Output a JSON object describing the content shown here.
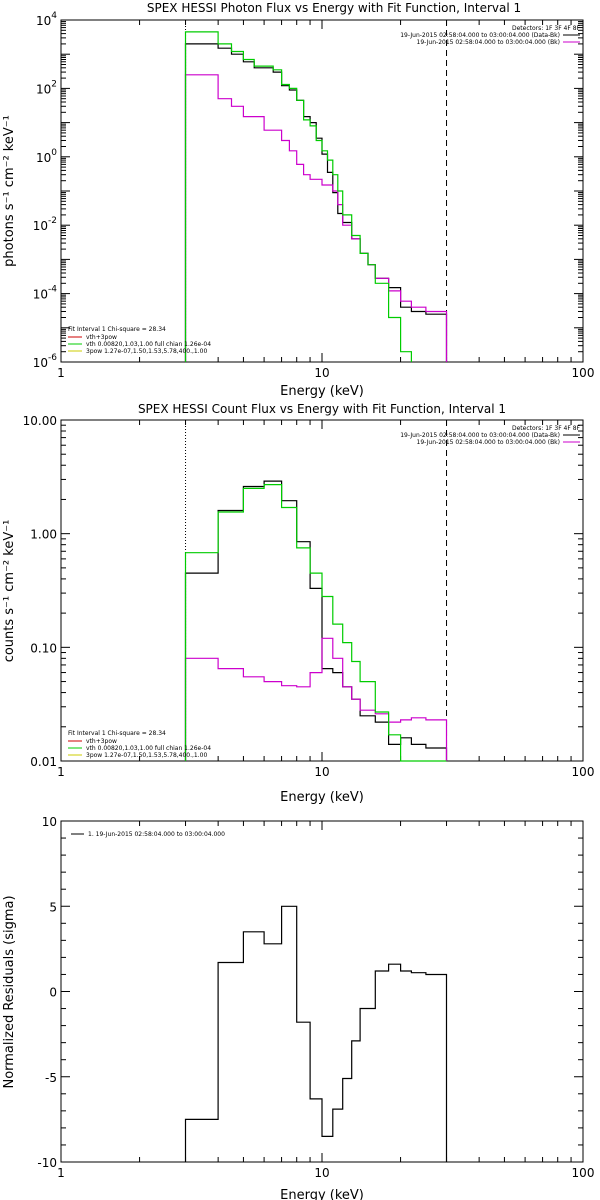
{
  "chart_data": [
    {
      "type": "line",
      "title": "SPEX HESSI Photon Flux vs Energy with Fit Function, Interval 1",
      "xlabel": "Energy (keV)",
      "ylabel": "photons s⁻¹ cm⁻² keV⁻¹",
      "xscale": "log",
      "yscale": "log",
      "xlim": [
        1,
        100
      ],
      "ylim": [
        1e-06,
        10000
      ],
      "xticks": [
        1,
        10,
        100
      ],
      "xtick_labels": [
        "1",
        "10",
        "100"
      ],
      "yticks": [
        1e-06,
        0.0001,
        0.01,
        1,
        100,
        10000
      ],
      "ytick_labels": [
        [
          "10",
          "-6"
        ],
        [
          "10",
          "-4"
        ],
        [
          "10",
          "-2"
        ],
        [
          "10",
          "0"
        ],
        [
          "10",
          "2"
        ],
        [
          "10",
          "4"
        ]
      ],
      "vlines": [
        {
          "x": 3,
          "style": "dotted"
        },
        {
          "x": 30,
          "style": "dashed"
        }
      ],
      "legend_top": {
        "header": "Detectors: 1F 3F 4F 8F",
        "entries": [
          {
            "label": "19-Jun-2015 02:58:04.000 to 03:00:04.000 (Data-Bk)",
            "color": "#000000"
          },
          {
            "label": "19-Jun-2015 02:58:04.000 to 03:00:04.000 (Bk)",
            "color": "#cc00cc"
          }
        ]
      },
      "legend_bottom": {
        "header": "Fit Interval 1   Chi-square = 28.34",
        "entries": [
          {
            "label": "vth+3pow",
            "color": "#cc0000"
          },
          {
            "label": "vth 0.00820,1.03,1.00  full chian 1.26e-04",
            "color": "#00cc00"
          },
          {
            "label": "3pow 1.27e-07,1.50,1.53,5.78,400.,1.00",
            "color": "#cccc00"
          }
        ]
      },
      "series": [
        {
          "color": "#000000",
          "step": true,
          "bins": [
            [
              3.0,
              3.5,
              2000
            ],
            [
              3.5,
              4.0,
              2000
            ],
            [
              4.0,
              4.5,
              1500
            ],
            [
              4.5,
              5.0,
              1000
            ],
            [
              5.0,
              5.5,
              600
            ],
            [
              5.5,
              6.0,
              400
            ],
            [
              6.0,
              6.5,
              400
            ],
            [
              6.5,
              7.0,
              300
            ],
            [
              7.0,
              7.5,
              120
            ],
            [
              7.5,
              8.0,
              90
            ],
            [
              8.0,
              8.5,
              45
            ],
            [
              8.5,
              9.0,
              15
            ],
            [
              9.0,
              9.5,
              10
            ],
            [
              9.5,
              10.0,
              3.5
            ],
            [
              10.0,
              10.5,
              1.2
            ],
            [
              10.5,
              11.0,
              0.35
            ],
            [
              11.0,
              11.5,
              0.09
            ],
            [
              11.5,
              12.0,
              0.022
            ],
            [
              12.0,
              13.0,
              0.012
            ],
            [
              13.0,
              14.0,
              0.004
            ],
            [
              14.0,
              15.0,
              0.0015
            ],
            [
              15.0,
              16.0,
              0.0007
            ],
            [
              16.0,
              18.0,
              0.00028
            ],
            [
              18.0,
              20.0,
              0.00015
            ],
            [
              20.0,
              22.0,
              4e-05
            ],
            [
              22.0,
              25.0,
              3e-05
            ],
            [
              25.0,
              30.0,
              2.5e-05
            ]
          ]
        },
        {
          "color": "#cc00cc",
          "step": true,
          "bins": [
            [
              3.0,
              3.5,
              250
            ],
            [
              3.5,
              4.0,
              250
            ],
            [
              4.0,
              4.5,
              50
            ],
            [
              4.5,
              5.0,
              30
            ],
            [
              5.0,
              6.0,
              15
            ],
            [
              6.0,
              7.0,
              6
            ],
            [
              7.0,
              7.5,
              3
            ],
            [
              7.5,
              8.0,
              1.5
            ],
            [
              8.0,
              8.5,
              0.6
            ],
            [
              8.5,
              9.0,
              0.3
            ],
            [
              9.0,
              10.0,
              0.22
            ],
            [
              10.0,
              11.0,
              0.15
            ],
            [
              11.0,
              11.5,
              0.1
            ],
            [
              11.5,
              12.0,
              0.04
            ],
            [
              12.0,
              13.0,
              0.01
            ],
            [
              13.0,
              14.0,
              0.004
            ],
            [
              14.0,
              15.0,
              0.0015
            ],
            [
              15.0,
              16.0,
              0.0007
            ],
            [
              16.0,
              18.0,
              0.00028
            ],
            [
              18.0,
              20.0,
              0.00012
            ],
            [
              20.0,
              22.0,
              6e-05
            ],
            [
              22.0,
              25.0,
              4e-05
            ],
            [
              25.0,
              30.0,
              3e-05
            ]
          ]
        },
        {
          "color": "#00cc00",
          "step": true,
          "bins": [
            [
              3.0,
              3.5,
              4500
            ],
            [
              3.5,
              4.0,
              4500
            ],
            [
              4.0,
              4.5,
              2000
            ],
            [
              4.5,
              5.0,
              1200
            ],
            [
              5.0,
              5.5,
              700
            ],
            [
              5.5,
              6.0,
              450
            ],
            [
              6.0,
              6.5,
              450
            ],
            [
              6.5,
              7.0,
              350
            ],
            [
              7.0,
              7.5,
              130
            ],
            [
              7.5,
              8.0,
              100
            ],
            [
              8.0,
              8.5,
              45
            ],
            [
              8.5,
              9.0,
              12
            ],
            [
              9.0,
              9.5,
              8
            ],
            [
              9.5,
              10.0,
              3
            ],
            [
              10.0,
              10.5,
              1.5
            ],
            [
              10.5,
              11.0,
              0.8
            ],
            [
              11.0,
              11.5,
              0.3
            ],
            [
              11.5,
              12.0,
              0.1
            ],
            [
              12.0,
              13.0,
              0.02
            ],
            [
              13.0,
              14.0,
              0.005
            ],
            [
              14.0,
              15.0,
              0.0015
            ],
            [
              15.0,
              16.0,
              0.0007
            ],
            [
              16.0,
              18.0,
              0.0002
            ],
            [
              18.0,
              20.0,
              2e-05
            ],
            [
              20.0,
              22.0,
              2e-06
            ]
          ]
        }
      ]
    },
    {
      "type": "line",
      "title": "SPEX HESSI Count Flux vs Energy with Fit Function, Interval 1",
      "xlabel": "Energy (keV)",
      "ylabel": "counts s⁻¹ cm⁻² keV⁻¹",
      "xscale": "log",
      "yscale": "log",
      "xlim": [
        1,
        100
      ],
      "ylim": [
        0.01,
        10
      ],
      "xticks": [
        1,
        10,
        100
      ],
      "xtick_labels": [
        "1",
        "10",
        "100"
      ],
      "yticks": [
        0.01,
        0.1,
        1,
        10
      ],
      "ytick_labels": [
        "0.01",
        "0.10",
        "1.00",
        "10.00"
      ],
      "vlines": [
        {
          "x": 3,
          "style": "dotted"
        },
        {
          "x": 30,
          "style": "dashed"
        }
      ],
      "legend_top": {
        "header": "Detectors: 1F 3F 4F 8F",
        "entries": [
          {
            "label": "19-Jun-2015 02:58:04.000 to 03:00:04.000 (Data-Bk)",
            "color": "#000000"
          },
          {
            "label": "19-Jun-2015 02:58:04.000 to 03:00:04.000 (Bk)",
            "color": "#cc00cc"
          }
        ]
      },
      "legend_bottom": {
        "header": "Fit Interval 1   Chi-square = 28.34",
        "entries": [
          {
            "label": "vth+3pow",
            "color": "#cc0000"
          },
          {
            "label": "vth 0.00820,1.03,1.00  full chian 1.26e-04",
            "color": "#00cc00"
          },
          {
            "label": "3pow 1.27e-07,1.50,1.53,5.78,400.,1.00",
            "color": "#cccc00"
          }
        ]
      },
      "series": [
        {
          "color": "#000000",
          "step": true,
          "bins": [
            [
              3.0,
              4.0,
              0.45
            ],
            [
              4.0,
              5.0,
              1.6
            ],
            [
              5.0,
              6.0,
              2.6
            ],
            [
              6.0,
              7.0,
              2.9
            ],
            [
              7.0,
              8.0,
              1.95
            ],
            [
              8.0,
              9.0,
              0.85
            ],
            [
              9.0,
              10.0,
              0.33
            ],
            [
              10.0,
              11.0,
              0.065
            ],
            [
              11.0,
              12.0,
              0.06
            ],
            [
              12.0,
              13.0,
              0.045
            ],
            [
              13.0,
              14.0,
              0.035
            ],
            [
              14.0,
              16.0,
              0.025
            ],
            [
              16.0,
              18.0,
              0.022
            ],
            [
              18.0,
              20.0,
              0.014
            ],
            [
              20.0,
              22.0,
              0.016
            ],
            [
              22.0,
              25.0,
              0.014
            ],
            [
              25.0,
              30.0,
              0.013
            ]
          ]
        },
        {
          "color": "#cc00cc",
          "step": true,
          "bins": [
            [
              3.0,
              4.0,
              0.08
            ],
            [
              4.0,
              5.0,
              0.065
            ],
            [
              5.0,
              6.0,
              0.055
            ],
            [
              6.0,
              7.0,
              0.05
            ],
            [
              7.0,
              8.0,
              0.046
            ],
            [
              8.0,
              9.0,
              0.045
            ],
            [
              9.0,
              10.0,
              0.06
            ],
            [
              10.0,
              11.0,
              0.12
            ],
            [
              11.0,
              12.0,
              0.08
            ],
            [
              12.0,
              13.0,
              0.045
            ],
            [
              13.0,
              14.0,
              0.035
            ],
            [
              14.0,
              16.0,
              0.028
            ],
            [
              16.0,
              18.0,
              0.026
            ],
            [
              18.0,
              20.0,
              0.022
            ],
            [
              20.0,
              22.0,
              0.023
            ],
            [
              22.0,
              25.0,
              0.024
            ],
            [
              25.0,
              30.0,
              0.023
            ]
          ]
        },
        {
          "color": "#00cc00",
          "step": true,
          "bins": [
            [
              3.0,
              4.0,
              0.68
            ],
            [
              4.0,
              5.0,
              1.55
            ],
            [
              5.0,
              6.0,
              2.5
            ],
            [
              6.0,
              7.0,
              2.7
            ],
            [
              7.0,
              8.0,
              1.7
            ],
            [
              8.0,
              9.0,
              0.75
            ],
            [
              9.0,
              10.0,
              0.45
            ],
            [
              10.0,
              11.0,
              0.28
            ],
            [
              11.0,
              12.0,
              0.16
            ],
            [
              12.0,
              13.0,
              0.11
            ],
            [
              13.0,
              14.0,
              0.075
            ],
            [
              14.0,
              16.0,
              0.05
            ],
            [
              16.0,
              18.0,
              0.027
            ],
            [
              18.0,
              20.0,
              0.017
            ],
            [
              20.0,
              22.0,
              0.01
            ],
            [
              22.0,
              25.0,
              0.007
            ],
            [
              25.0,
              30.0,
              0.005
            ]
          ]
        }
      ]
    },
    {
      "type": "line",
      "title": "",
      "xlabel": "Energy (keV)",
      "ylabel": "Normalized Residuals (sigma)",
      "xscale": "log",
      "yscale": "linear",
      "xlim": [
        1,
        100
      ],
      "ylim": [
        -10,
        10
      ],
      "xticks": [
        1,
        10,
        100
      ],
      "xtick_labels": [
        "1",
        "10",
        "100"
      ],
      "yticks": [
        -10,
        -5,
        0,
        5,
        10
      ],
      "ytick_labels": [
        "-10",
        "-5",
        "0",
        "5",
        "10"
      ],
      "legend_top": {
        "entries": [
          {
            "label": "1. 19-Jun-2015 02:58:04.000 to 03:00:04.000",
            "color": "#000000"
          }
        ]
      },
      "series": [
        {
          "color": "#000000",
          "step": true,
          "bins": [
            [
              3.0,
              4.0,
              -7.5
            ],
            [
              4.0,
              5.0,
              1.7
            ],
            [
              5.0,
              6.0,
              3.5
            ],
            [
              6.0,
              7.0,
              2.8
            ],
            [
              7.0,
              8.0,
              5.0
            ],
            [
              8.0,
              9.0,
              -1.8
            ],
            [
              9.0,
              10.0,
              -6.3
            ],
            [
              10.0,
              11.0,
              -8.5
            ],
            [
              11.0,
              12.0,
              -6.9
            ],
            [
              12.0,
              13.0,
              -5.1
            ],
            [
              13.0,
              14.0,
              -2.9
            ],
            [
              14.0,
              16.0,
              -1.0
            ],
            [
              16.0,
              18.0,
              1.2
            ],
            [
              18.0,
              20.0,
              1.6
            ],
            [
              20.0,
              22.0,
              1.2
            ],
            [
              22.0,
              25.0,
              1.1
            ],
            [
              25.0,
              30.0,
              1.0
            ]
          ]
        }
      ]
    }
  ]
}
